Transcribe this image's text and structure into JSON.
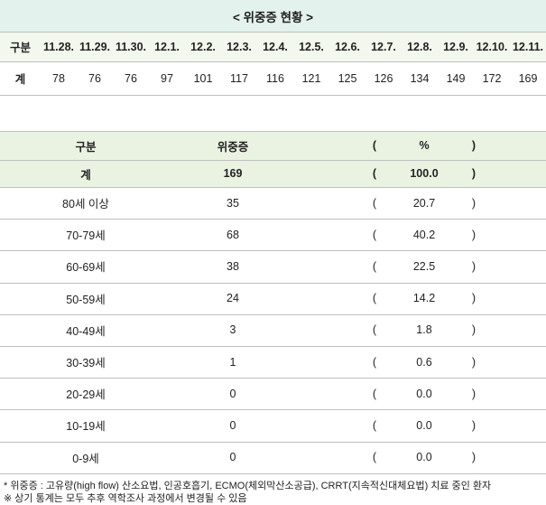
{
  "title": "< 위중증 현황 >",
  "table1": {
    "header": [
      "구분",
      "11.28.",
      "11.29.",
      "11.30.",
      "12.1.",
      "12.2.",
      "12.3.",
      "12.4.",
      "12.5.",
      "12.6.",
      "12.7.",
      "12.8.",
      "12.9.",
      "12.10.",
      "12.11."
    ],
    "rows": [
      [
        "계",
        "78",
        "76",
        "76",
        "97",
        "101",
        "117",
        "116",
        "121",
        "125",
        "126",
        "134",
        "149",
        "172",
        "169"
      ]
    ]
  },
  "table2": {
    "header": [
      "구분",
      "위중증",
      "(",
      "%",
      ")"
    ],
    "rows": [
      [
        "계",
        "169",
        "(",
        "100.0",
        ")"
      ],
      [
        "80세 이상",
        "35",
        "(",
        "20.7",
        ")"
      ],
      [
        "70-79세",
        "68",
        "(",
        "40.2",
        ")"
      ],
      [
        "60-69세",
        "38",
        "(",
        "22.5",
        ")"
      ],
      [
        "50-59세",
        "24",
        "(",
        "14.2",
        ")"
      ],
      [
        "40-49세",
        "3",
        "(",
        "1.8",
        ")"
      ],
      [
        "30-39세",
        "1",
        "(",
        "0.6",
        ")"
      ],
      [
        "20-29세",
        "0",
        "(",
        "0.0",
        ")"
      ],
      [
        "10-19세",
        "0",
        "(",
        "0.0",
        ")"
      ],
      [
        "0-9세",
        "0",
        "(",
        "0.0",
        ")"
      ]
    ]
  },
  "notes": [
    "* 위중증 : 고유량(high flow) 산소요법, 인공호흡기, ECMO(체외막산소공급), CRRT(지속적신대체요법) 치료 중인 환자",
    "※ 상기 통계는 모두 추후 역학조사 과정에서 변경될 수 있음"
  ]
}
